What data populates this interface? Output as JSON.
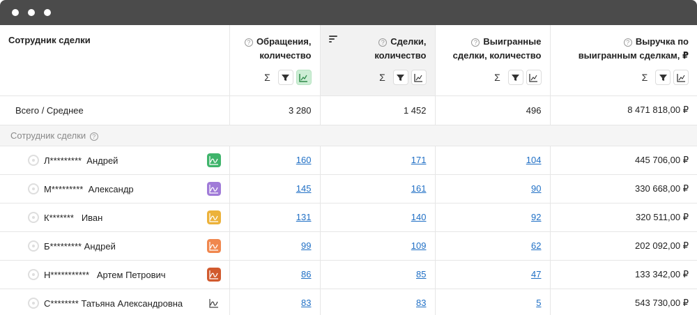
{
  "header": {
    "name": "Сотрудник сделки",
    "col_a": [
      "Обращения,",
      "количество"
    ],
    "col_b": [
      "Сделки,",
      "количество"
    ],
    "col_c": [
      "Выигранные",
      "сделки, количество"
    ],
    "col_d": [
      "Выручка по",
      "выигранным сделкам, ₽"
    ],
    "sum_symbol": "Σ"
  },
  "total": {
    "label": "Всего / Среднее",
    "a": "3 280",
    "b": "1 452",
    "c": "496",
    "d": "8 471 818,00 ₽"
  },
  "group": {
    "label": "Сотрудник сделки"
  },
  "rows": [
    {
      "name": "Л*********  Андрей",
      "color": "#3fb46b",
      "a": "160",
      "b": "171",
      "c": "104",
      "d": "445 706,00 ₽"
    },
    {
      "name": "М*********  Александр",
      "color": "#a07bd8",
      "a": "145",
      "b": "161",
      "c": "90",
      "d": "330 668,00 ₽"
    },
    {
      "name": "К*******   Иван",
      "color": "#ecb23a",
      "a": "131",
      "b": "140",
      "c": "92",
      "d": "320 511,00 ₽"
    },
    {
      "name": "Б********* Андрей",
      "color": "#f0874e",
      "a": "99",
      "b": "109",
      "c": "62",
      "d": "202 092,00 ₽"
    },
    {
      "name": "Н***********   Артем Петрович",
      "color": "#d15a2e",
      "a": "86",
      "b": "85",
      "c": "47",
      "d": "133 342,00 ₽"
    },
    {
      "name": "С******** Татьяна Александровна",
      "color": "none",
      "a": "83",
      "b": "83",
      "c": "5",
      "d": "543 730,00 ₽"
    }
  ],
  "colors": {
    "link": "#1f6fc5",
    "active_tool": "#cdeed5",
    "titlebar": "#4b4b4b"
  }
}
